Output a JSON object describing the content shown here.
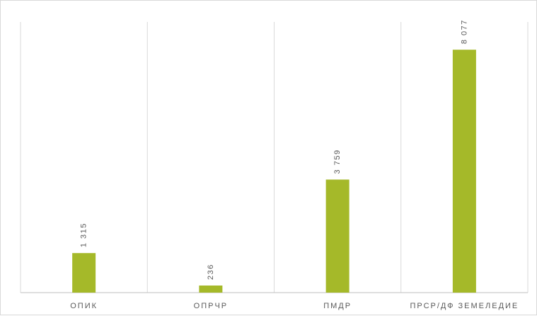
{
  "chart_data": {
    "type": "bar",
    "categories": [
      "ОПИК",
      "ОПРЧР",
      "ПМДР",
      "ПРСР/ДФ ЗЕМЕЛЕДИЕ"
    ],
    "values": [
      1315,
      236,
      3759,
      8077
    ],
    "value_labels": [
      "1 315",
      "236",
      "3 759",
      "8 077"
    ],
    "title": "",
    "xlabel": "",
    "ylabel": "",
    "ylim": [
      0,
      9000
    ],
    "grid": "vertical category separators",
    "legend": "none",
    "bar_color": "#a5b929",
    "axis_color": "#bfbfbf"
  }
}
